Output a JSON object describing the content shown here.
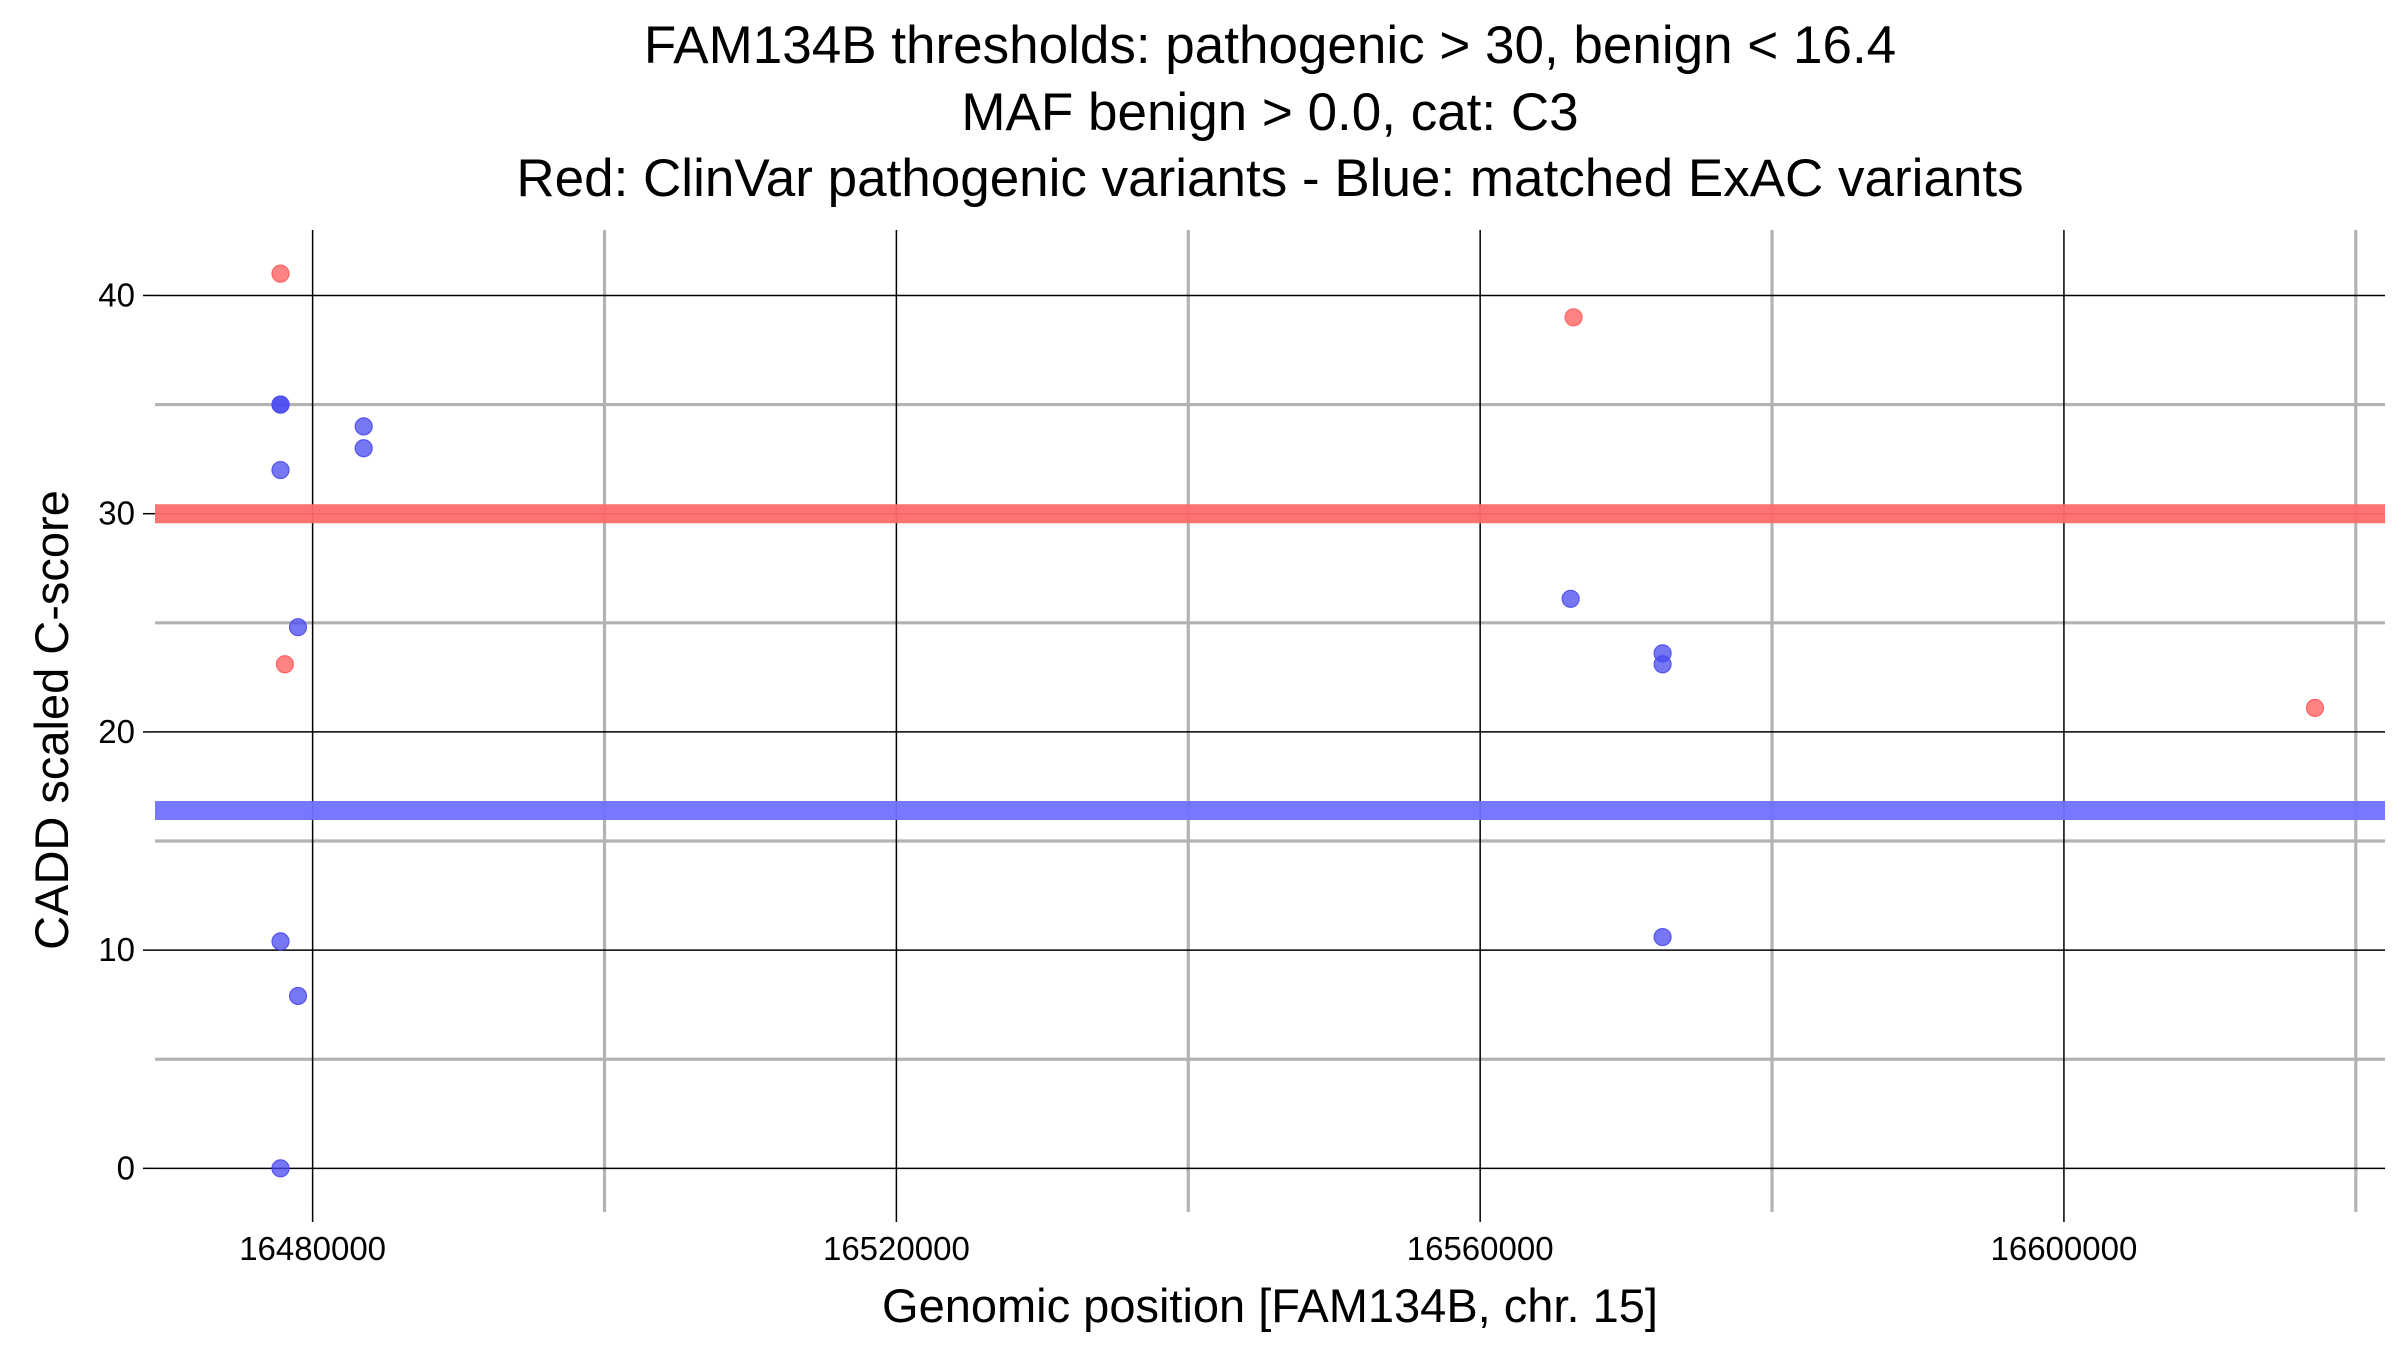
{
  "chart_data": {
    "type": "scatter",
    "title_lines": [
      "FAM134B thresholds: pathogenic > 30, benign < 16.4",
      "MAF benign > 0.0, cat: C3",
      "Red: ClinVar pathogenic variants - Blue: matched ExAC variants"
    ],
    "xlabel": "Genomic position [FAM134B, chr. 15]",
    "ylabel": "CADD scaled C-score",
    "xlim": [
      16469200,
      16622000
    ],
    "ylim": [
      -2.0,
      43.0
    ],
    "x_major_ticks": [
      16480000,
      16520000,
      16560000,
      16600000
    ],
    "x_tick_labels": [
      "16480000",
      "16520000",
      "16560000",
      "16600000"
    ],
    "x_minor_ticks": [
      16500000,
      16540000,
      16580000,
      16620000
    ],
    "y_major_ticks": [
      0,
      10,
      20,
      30,
      40
    ],
    "y_tick_labels": [
      "0",
      "10",
      "20",
      "30",
      "40"
    ],
    "y_minor_ticks": [
      5,
      15,
      25,
      35
    ],
    "grid": true,
    "thresholds": [
      {
        "name": "pathogenic",
        "value": 30.0,
        "color": "#ff6a6a"
      },
      {
        "name": "benign",
        "value": 16.4,
        "color": "#7070ff"
      }
    ],
    "series": [
      {
        "name": "ClinVar pathogenic variants",
        "color": "#ff5a5a",
        "points": [
          {
            "x": 16477800,
            "y": 41.0
          },
          {
            "x": 16478100,
            "y": 23.1
          },
          {
            "x": 16566400,
            "y": 39.0
          },
          {
            "x": 16617200,
            "y": 21.1
          }
        ]
      },
      {
        "name": "matched ExAC variants",
        "color": "#4a4af0",
        "points": [
          {
            "x": 16477800,
            "y": 35.0
          },
          {
            "x": 16477800,
            "y": 35.0
          },
          {
            "x": 16477800,
            "y": 32.0
          },
          {
            "x": 16479000,
            "y": 24.8
          },
          {
            "x": 16483500,
            "y": 34.0
          },
          {
            "x": 16483500,
            "y": 33.0
          },
          {
            "x": 16477800,
            "y": 10.4
          },
          {
            "x": 16479000,
            "y": 7.9
          },
          {
            "x": 16477800,
            "y": 0.0
          },
          {
            "x": 16566200,
            "y": 26.1
          },
          {
            "x": 16572500,
            "y": 23.6
          },
          {
            "x": 16572500,
            "y": 23.1
          },
          {
            "x": 16572500,
            "y": 10.6
          }
        ]
      }
    ]
  }
}
